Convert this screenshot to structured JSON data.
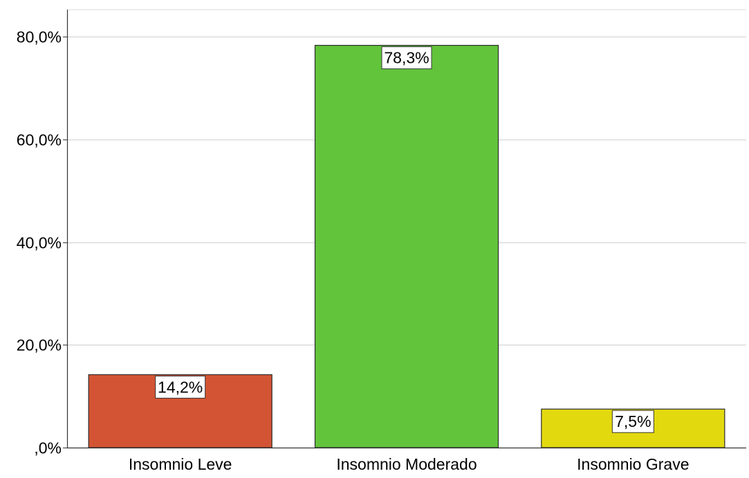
{
  "chart_data": {
    "type": "bar",
    "title": "",
    "xlabel": "",
    "ylabel": "",
    "categories": [
      "Insomnio Leve",
      "Insomnio Moderado",
      "Insomnio Grave"
    ],
    "values": [
      14.2,
      78.3,
      7.5
    ],
    "value_labels": [
      "14,2%",
      "78,3%",
      "7,5%"
    ],
    "bar_colors": [
      "#d35434",
      "#62c43b",
      "#e3d90f"
    ],
    "ylim": [
      0,
      80
    ],
    "yticks": [
      {
        "value": 0,
        "label": ",0%"
      },
      {
        "value": 20,
        "label": "20,0%"
      },
      {
        "value": 40,
        "label": "40,0%"
      },
      {
        "value": 60,
        "label": "60,0%"
      },
      {
        "value": 80,
        "label": "80,0%"
      }
    ],
    "grid": true,
    "legend": "none"
  }
}
